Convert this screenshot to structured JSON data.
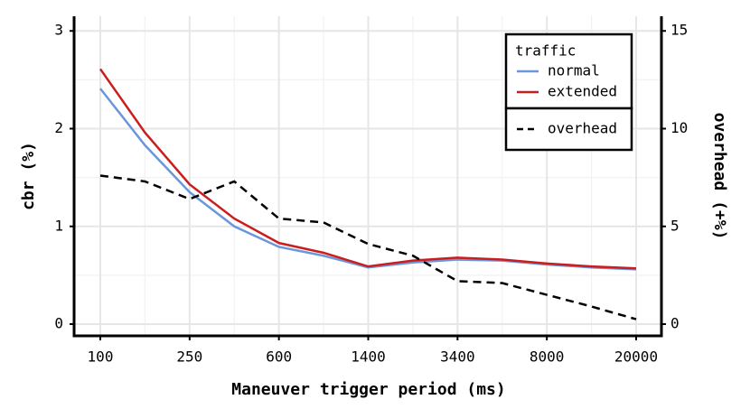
{
  "chart_data": {
    "type": "line",
    "x_label": "Maneuver trigger period (ms)",
    "y_label": "cbr (%)",
    "y2_label": "overhead (+%)",
    "categories": [
      "100",
      null,
      "250",
      null,
      "600",
      null,
      "1400",
      null,
      "3400",
      null,
      "8000",
      null,
      "20000"
    ],
    "ylim": [
      -0.12,
      3.15
    ],
    "yticks": [
      0,
      1,
      2,
      3
    ],
    "y2lim": [
      -0.6,
      15.75
    ],
    "y2ticks": [
      0,
      5,
      10,
      15
    ],
    "grid": true,
    "legend_title": "traffic",
    "legend_position": "top-right",
    "series": [
      {
        "name": "normal",
        "color": "#6a96dc",
        "values": [
          2.41,
          1.83,
          1.35,
          1.0,
          0.79,
          0.7,
          0.58,
          0.63,
          0.66,
          0.65,
          0.61,
          0.58,
          0.56
        ]
      },
      {
        "name": "extended",
        "color": "#cc1d1d",
        "values": [
          2.61,
          1.96,
          1.43,
          1.08,
          0.83,
          0.73,
          0.59,
          0.65,
          0.68,
          0.66,
          0.62,
          0.59,
          0.57
        ]
      },
      {
        "name": "overhead",
        "color": "#000000",
        "dashed": true,
        "axis": "y2",
        "values": [
          7.6,
          7.3,
          6.4,
          7.3,
          5.4,
          5.2,
          4.1,
          3.5,
          2.2,
          2.1,
          1.5,
          0.9,
          0.25
        ]
      }
    ]
  }
}
